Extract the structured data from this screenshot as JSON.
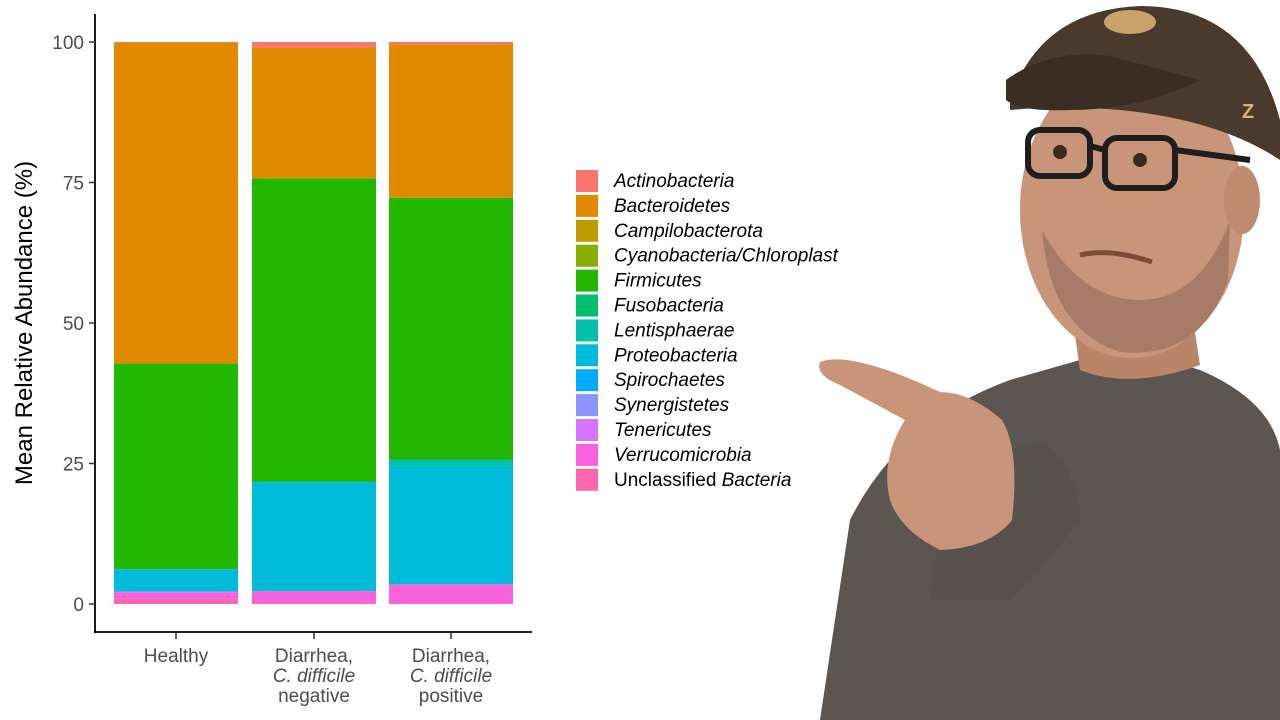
{
  "chart_data": {
    "type": "bar",
    "stacked": true,
    "ylabel": "Mean Relative Abundance (%)",
    "xlabel": "",
    "ylim": [
      0,
      100
    ],
    "yticks": [
      0,
      25,
      50,
      75,
      100
    ],
    "grid": false,
    "legend_position": "right",
    "categories": [
      {
        "lines": [
          [
            {
              "text": "Healthy",
              "italic": false
            }
          ]
        ]
      },
      {
        "lines": [
          [
            {
              "text": "Diarrhea,",
              "italic": false
            }
          ],
          [
            {
              "text": "C. difficile",
              "italic": true
            }
          ],
          [
            {
              "text": "negative",
              "italic": false
            }
          ]
        ]
      },
      {
        "lines": [
          [
            {
              "text": "Diarrhea,",
              "italic": false
            }
          ],
          [
            {
              "text": "C. difficile",
              "italic": true
            }
          ],
          [
            {
              "text": "positive",
              "italic": false
            }
          ]
        ]
      }
    ],
    "series": [
      {
        "name": "Actinobacteria",
        "name_parts": [
          {
            "text": "Actinobacteria",
            "italic": true
          }
        ],
        "color": "#F8766D",
        "values": [
          0.1,
          1.0,
          0.4
        ]
      },
      {
        "name": "Bacteroidetes",
        "name_parts": [
          {
            "text": "Bacteroidetes",
            "italic": true
          }
        ],
        "color": "#E18A00",
        "values": [
          57.1,
          23.2,
          27.3
        ]
      },
      {
        "name": "Campilobacterota",
        "name_parts": [
          {
            "text": "Campilobacterota",
            "italic": true
          }
        ],
        "color": "#BE9C00",
        "values": [
          0.0,
          0.1,
          0.0
        ]
      },
      {
        "name": "Cyanobacteria/Chloroplast",
        "name_parts": [
          {
            "text": "Cyanobacteria/Chloroplast",
            "italic": true
          }
        ],
        "color": "#8CAB00",
        "values": [
          0.0,
          0.0,
          0.0
        ]
      },
      {
        "name": "Firmicutes",
        "name_parts": [
          {
            "text": "Firmicutes",
            "italic": true
          }
        ],
        "color": "#24B700",
        "values": [
          36.6,
          53.9,
          46.6
        ]
      },
      {
        "name": "Fusobacteria",
        "name_parts": [
          {
            "text": "Fusobacteria",
            "italic": true
          }
        ],
        "color": "#00BE70",
        "values": [
          0.0,
          0.1,
          0.0
        ]
      },
      {
        "name": "Lentisphaerae",
        "name_parts": [
          {
            "text": "Lentisphaerae",
            "italic": true
          }
        ],
        "color": "#00C1AB",
        "values": [
          0.0,
          0.0,
          1.3
        ]
      },
      {
        "name": "Proteobacteria",
        "name_parts": [
          {
            "text": "Proteobacteria",
            "italic": true
          }
        ],
        "color": "#00BBDA",
        "values": [
          4.0,
          19.4,
          20.9
        ]
      },
      {
        "name": "Spirochaetes",
        "name_parts": [
          {
            "text": "Spirochaetes",
            "italic": true
          }
        ],
        "color": "#00ACFC",
        "values": [
          0.0,
          0.0,
          0.0
        ]
      },
      {
        "name": "Synergistetes",
        "name_parts": [
          {
            "text": "Synergistetes",
            "italic": true
          }
        ],
        "color": "#8B93FF",
        "values": [
          0.0,
          0.0,
          0.0
        ]
      },
      {
        "name": "Tenericutes",
        "name_parts": [
          {
            "text": "Tenericutes",
            "italic": true
          }
        ],
        "color": "#D575FE",
        "values": [
          0.1,
          0.0,
          0.0
        ]
      },
      {
        "name": "Verrucomicrobia",
        "name_parts": [
          {
            "text": "Verrucomicrobia",
            "italic": true
          }
        ],
        "color": "#F962DD",
        "values": [
          1.2,
          2.2,
          3.5
        ]
      },
      {
        "name": "Unclassified Bacteria",
        "name_parts": [
          {
            "text": "Unclassified ",
            "italic": false
          },
          {
            "text": "Bacteria",
            "italic": true
          }
        ],
        "color": "#FF65AC",
        "values": [
          0.9,
          0.1,
          0.0
        ]
      }
    ]
  },
  "photo": {
    "cap_color": "#4a3a2e",
    "shirt_color": "#5b5651",
    "skin_color": "#c9957a",
    "cap_letter": "Z"
  }
}
